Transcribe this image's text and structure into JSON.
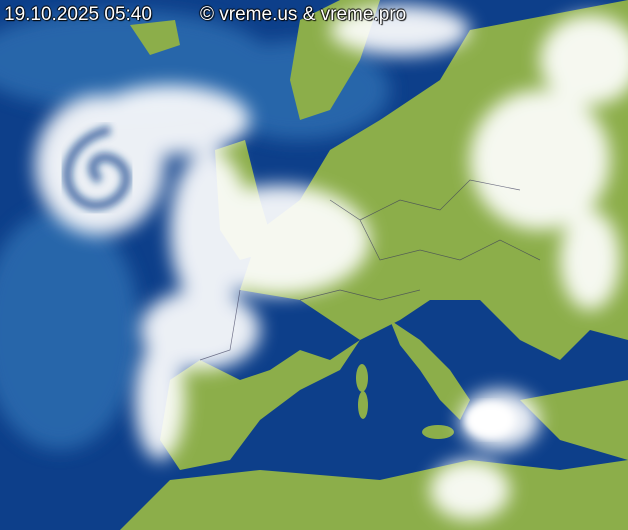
{
  "timestamp": "19.10.2025 05:40",
  "copyright": "© vreme.us & vreme.pro",
  "colors": {
    "ocean": "#0d3f8a",
    "ocean_light": "#2f6fb3",
    "land": "#8cae4a",
    "cloud": "#ffffff"
  }
}
